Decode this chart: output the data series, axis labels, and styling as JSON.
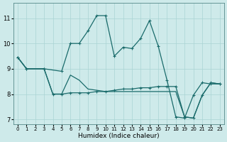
{
  "xlabel": "Humidex (Indice chaleur)",
  "bg_color": "#ceeaea",
  "line_color": "#1a6b6b",
  "grid_color": "#aad4d4",
  "xlim": [
    -0.5,
    23.5
  ],
  "ylim": [
    6.8,
    11.6
  ],
  "yticks": [
    7,
    8,
    9,
    10,
    11
  ],
  "xticks": [
    0,
    1,
    2,
    3,
    4,
    5,
    6,
    7,
    8,
    9,
    10,
    11,
    12,
    13,
    14,
    15,
    16,
    17,
    18,
    19,
    20,
    21,
    22,
    23
  ],
  "series1_x": [
    0,
    1,
    3,
    5,
    6,
    7,
    8,
    9,
    10,
    11,
    12,
    13,
    14,
    15,
    16,
    17,
    18,
    19,
    20,
    21,
    22,
    23
  ],
  "series1_y": [
    9.45,
    9.0,
    9.0,
    8.9,
    10.0,
    10.0,
    10.5,
    11.1,
    11.1,
    9.5,
    9.85,
    9.8,
    10.2,
    10.9,
    9.9,
    8.55,
    7.1,
    7.05,
    7.95,
    8.45,
    8.4,
    8.4
  ],
  "series2_x": [
    0,
    1,
    3,
    4,
    5,
    6,
    7,
    8,
    9,
    10,
    11,
    12,
    13,
    14,
    15,
    16,
    17,
    18,
    19,
    20,
    21,
    22,
    23
  ],
  "series2_y": [
    9.45,
    9.0,
    9.0,
    8.0,
    8.0,
    8.05,
    8.05,
    8.05,
    8.1,
    8.1,
    8.15,
    8.2,
    8.2,
    8.25,
    8.25,
    8.3,
    8.3,
    8.3,
    7.1,
    7.05,
    7.95,
    8.45,
    8.4
  ],
  "series3_x": [
    0,
    1,
    3,
    4,
    5,
    6,
    7,
    8,
    9,
    10,
    11,
    12,
    13,
    14,
    15,
    16,
    17,
    18,
    19,
    20,
    21,
    22,
    23
  ],
  "series3_y": [
    9.45,
    9.0,
    9.0,
    8.0,
    8.0,
    8.75,
    8.55,
    8.2,
    8.15,
    8.1,
    8.1,
    8.1,
    8.1,
    8.1,
    8.1,
    8.1,
    8.1,
    8.1,
    7.1,
    7.05,
    7.95,
    8.45,
    8.4
  ]
}
